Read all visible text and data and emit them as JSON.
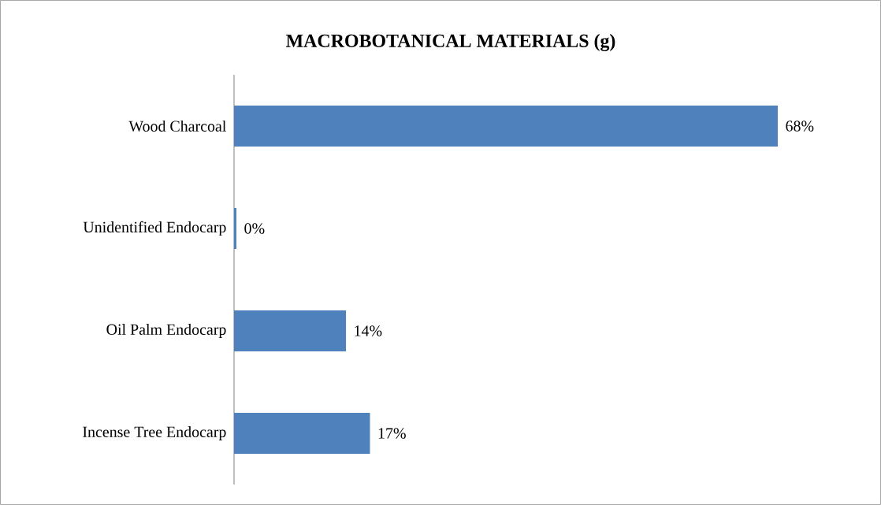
{
  "chart_data": {
    "type": "bar",
    "orientation": "horizontal",
    "title": "MACROBOTANICAL MATERIALS (g)",
    "categories": [
      "Wood Charcoal",
      "Unidentified Endocarp",
      "Oil Palm Endocarp",
      "Incense Tree Endocarp"
    ],
    "values": [
      68,
      0.3,
      14,
      17
    ],
    "value_labels": [
      "68%",
      "0%",
      "14%",
      "17%"
    ],
    "color": "#4f81bd",
    "tick_labels": "y"
  }
}
